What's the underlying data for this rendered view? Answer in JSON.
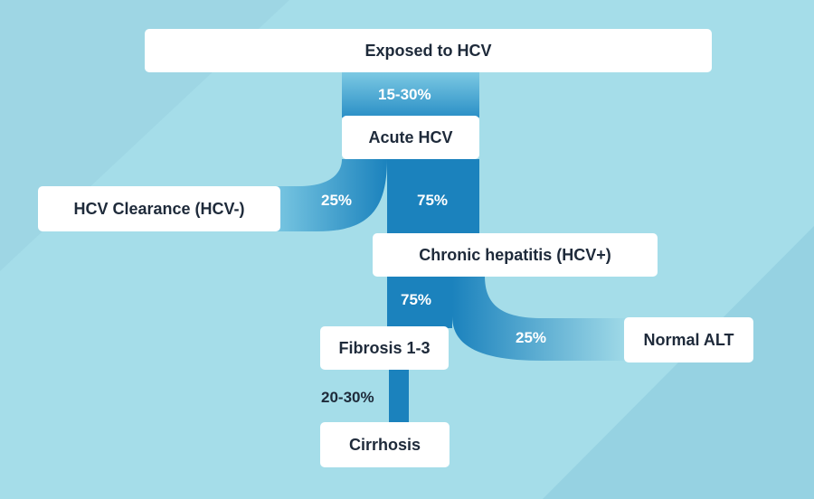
{
  "nodes": {
    "exposed": "Exposed to HCV",
    "acute": "Acute HCV",
    "clearance": "HCV Clearance (HCV-)",
    "chronic": "Chronic hepatitis (HCV+)",
    "fibrosis": "Fibrosis 1-3",
    "normal_alt": "Normal ALT",
    "cirrhosis": "Cirrhosis"
  },
  "flows": {
    "exposed_to_acute": "15-30%",
    "acute_to_clearance": "25%",
    "acute_to_chronic": "75%",
    "chronic_to_fibrosis": "75%",
    "chronic_to_normal_alt": "25%",
    "fibrosis_to_cirrhosis": "20-30%"
  },
  "colors": {
    "background": "#a5dde9",
    "flow_dark": "#1b82bd",
    "flow_light": "#6ec2e0",
    "node_fill": "#ffffff",
    "node_text": "#1e2a3a"
  }
}
